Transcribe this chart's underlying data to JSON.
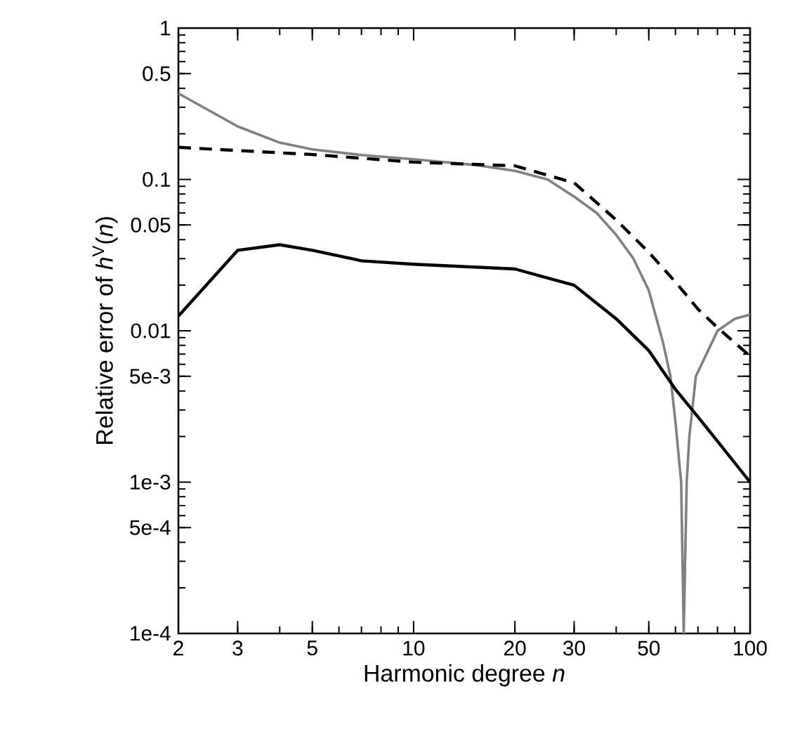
{
  "chart_data": {
    "type": "line",
    "xlabel": "Harmonic degree *n*",
    "ylabel": "Relative error of *h*$^{V}$(*n*)",
    "log": "xy",
    "grid": false,
    "marker": "none",
    "xlim": [
      2,
      100
    ],
    "ylim": [
      0.0001,
      1
    ],
    "xticks": [
      2,
      3,
      5,
      10,
      20,
      30,
      50,
      100
    ],
    "yticks": [
      {
        "value": 0.0001,
        "label": "1e-4"
      },
      {
        "value": 0.0005,
        "label": "5e-4"
      },
      {
        "value": 0.001,
        "label": "1e-3"
      },
      {
        "value": 0.005,
        "label": "5e-3"
      },
      0.01,
      0.05,
      0.1,
      0.5,
      1
    ],
    "series": [
      {
        "color": "#808080",
        "line_style": "solid",
        "x": [
          2,
          3,
          4,
          5,
          7,
          10,
          15,
          20,
          25,
          30,
          35,
          40,
          45,
          50,
          55,
          58,
          60,
          62.4,
          63.5,
          64.8,
          66,
          69,
          80,
          90,
          100
        ],
        "values": [
          0.37,
          0.224,
          0.175,
          0.158,
          0.145,
          0.136,
          0.125,
          0.114,
          0.1,
          0.077,
          0.06,
          0.043,
          0.03,
          0.0185,
          0.0085,
          0.005,
          0.0025,
          0.001,
          0.0001,
          0.001,
          0.002,
          0.005,
          0.01,
          0.012,
          0.0128
        ]
      },
      {
        "color": "#000000",
        "line_style": "dashed",
        "x": [
          2,
          5,
          10,
          20,
          30,
          40,
          50,
          60,
          70,
          80,
          100
        ],
        "values": [
          0.163,
          0.146,
          0.13,
          0.123,
          0.095,
          0.054,
          0.033,
          0.021,
          0.0139,
          0.0105,
          0.0068
        ]
      },
      {
        "color": "#000000",
        "line_style": "solid",
        "x": [
          2,
          3,
          4,
          5,
          7,
          10,
          20,
          30,
          40,
          50,
          60,
          70,
          100
        ],
        "values": [
          0.0125,
          0.034,
          0.037,
          0.034,
          0.029,
          0.0275,
          0.0256,
          0.02,
          0.012,
          0.0074,
          0.0041,
          0.0027,
          0.001
        ]
      }
    ]
  }
}
